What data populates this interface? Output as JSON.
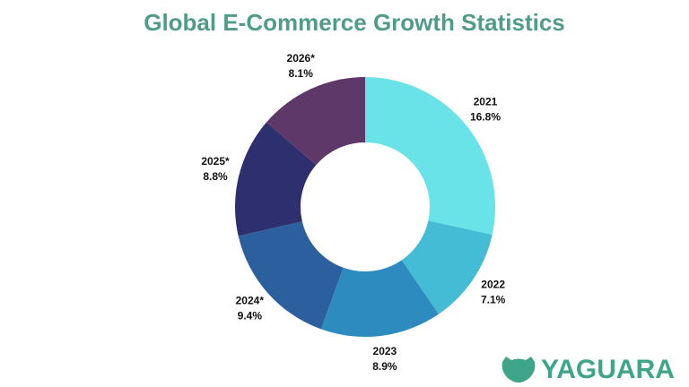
{
  "chart_data": {
    "type": "pie",
    "title": "Global E-Commerce Growth Statistics",
    "categories": [
      "2021",
      "2022",
      "2023",
      "2024*",
      "2025*",
      "2026*"
    ],
    "values": [
      16.8,
      7.1,
      8.9,
      9.4,
      8.8,
      8.1
    ],
    "value_labels": [
      "16.8%",
      "7.1%",
      "8.9%",
      "9.4%",
      "8.8%",
      "8.1%"
    ],
    "colors": [
      "#6ae3e8",
      "#45bcd6",
      "#2e8bc0",
      "#2c5f9e",
      "#2e2f6e",
      "#5e3868"
    ],
    "donut": true
  },
  "logo": {
    "text": "YAGUARA"
  }
}
